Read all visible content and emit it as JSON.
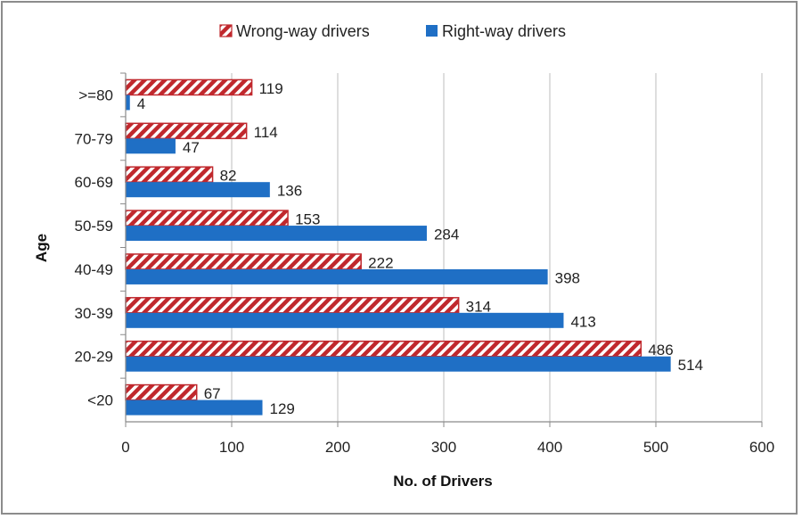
{
  "chart_data": {
    "type": "bar",
    "orientation": "horizontal",
    "categories": [
      "<20",
      "20-29",
      "30-39",
      "40-49",
      "50-59",
      "60-69",
      "70-79",
      ">=80"
    ],
    "series": [
      {
        "name": "Wrong-way drivers",
        "values": [
          67,
          486,
          314,
          222,
          153,
          82,
          114,
          119
        ],
        "color": "#c0282d",
        "pattern": "diagonal-hatch"
      },
      {
        "name": "Right-way drivers",
        "values": [
          129,
          514,
          413,
          398,
          284,
          136,
          47,
          4
        ],
        "color": "#1f6fc5"
      }
    ],
    "xlabel": "No. of Drivers",
    "ylabel": "Age",
    "xlim": [
      0,
      600
    ],
    "xticks": [
      0,
      100,
      200,
      300,
      400,
      500,
      600
    ],
    "grid": "vertical",
    "legend": "top-center"
  }
}
